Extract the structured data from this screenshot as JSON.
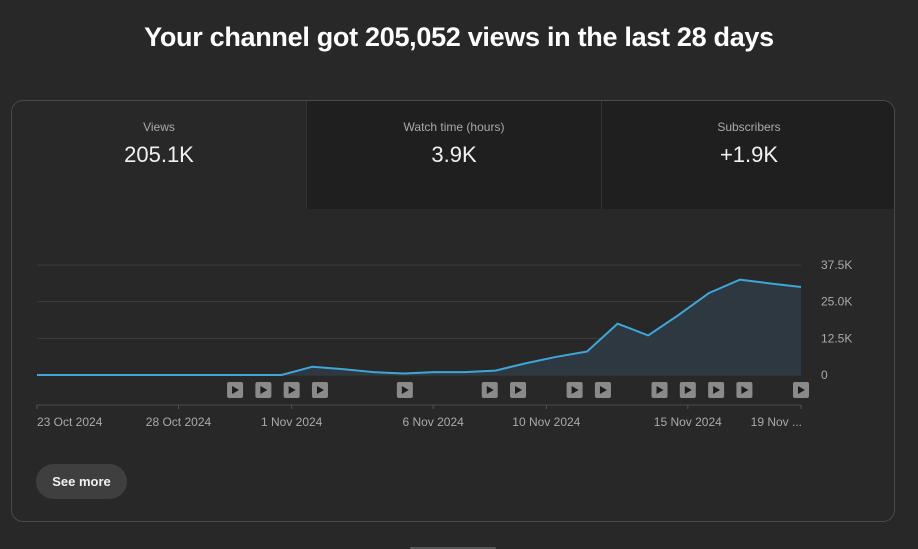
{
  "headline": "Your channel got 205,052 views in the last 28 days",
  "tabs": [
    {
      "label": "Views",
      "value": "205.1K",
      "active": true
    },
    {
      "label": "Watch time (hours)",
      "value": "3.9K",
      "active": false
    },
    {
      "label": "Subscribers",
      "value": "+1.9K",
      "active": false
    }
  ],
  "see_more_label": "See more",
  "colors": {
    "background": "#282828",
    "line": "#3ea6d8",
    "area_fill": "#2e3b44",
    "marker": "#8a8a8a"
  },
  "chart_data": {
    "type": "area",
    "series": [
      {
        "values": [
          0,
          0,
          0,
          0,
          0,
          0,
          0,
          0,
          0,
          2800,
          2000,
          1000,
          500,
          1000,
          1000,
          1500,
          4000,
          6200,
          8000,
          17500,
          13500,
          20500,
          28000,
          32500,
          31200,
          30000
        ]
      }
    ],
    "x_ticks": [
      "23 Oct 2024",
      "28 Oct 2024",
      "1 Nov 2024",
      "6 Nov 2024",
      "10 Nov 2024",
      "15 Nov 2024",
      "19 Nov ..."
    ],
    "y_ticks": [
      "0",
      "12.5K",
      "25.0K",
      "37.5K"
    ],
    "ylim": [
      0,
      37500
    ],
    "grid": true,
    "video_markers": [
      7,
      8,
      9,
      10,
      13,
      16,
      17,
      19,
      20,
      22,
      23,
      24,
      25,
      27
    ]
  }
}
